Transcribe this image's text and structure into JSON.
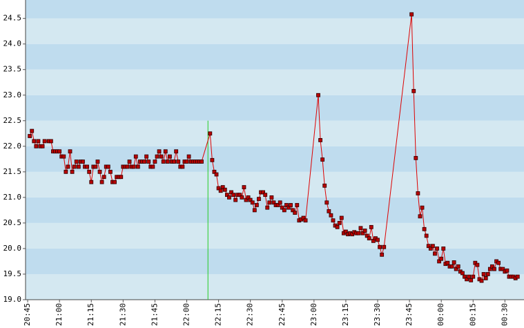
{
  "chart_data": {
    "type": "line",
    "color": "#dd0000",
    "marker_fill": "#b80000",
    "background": [
      "#d4e8f1",
      "#bfdcee"
    ],
    "xlim": [
      "20:44",
      "00:39"
    ],
    "xticks": [
      "20:45",
      "21:00",
      "21:15",
      "21:30",
      "21:45",
      "22:00",
      "22:15",
      "22:30",
      "22:45",
      "23:00",
      "23:15",
      "23:30",
      "23:45",
      "00:00",
      "00:15",
      "00:30"
    ],
    "ylim": [
      19,
      24.86
    ],
    "yticks": [
      {
        "value": 19,
        "label": "19.0"
      },
      19.5,
      {
        "value": 20,
        "label": "20.0"
      },
      20.5,
      {
        "value": 21,
        "label": "21.0"
      },
      21.5,
      {
        "value": 22,
        "label": "22.0"
      },
      22.5,
      {
        "value": 23,
        "label": "23.0"
      },
      23.5,
      {
        "value": 24,
        "label": "24.0"
      },
      24.5
    ],
    "vline": {
      "x": "22:10",
      "y": 22.5,
      "color": "#22cc22"
    },
    "x": [
      "20:46",
      "20:47",
      "20:48",
      "20:49",
      "20:50",
      "20:51",
      "20:52",
      "20:53",
      "20:55",
      "20:56",
      "20:57",
      "20:58",
      "20:59",
      "21:00",
      "21:01",
      "21:02",
      "21:03",
      "21:04",
      "21:05",
      "21:06",
      "21:07",
      "21:08",
      "21:09",
      "21:10",
      "21:11",
      "21:12",
      "21:13",
      "21:14",
      "21:15",
      "21:16",
      "21:17",
      "21:18",
      "21:19",
      "21:20",
      "21:21",
      "21:22",
      "21:23",
      "21:24",
      "21:25",
      "21:26",
      "21:27",
      "21:28",
      "21:29",
      "21:30",
      "21:31",
      "21:32",
      "21:33",
      "21:34",
      "21:35",
      "21:36",
      "21:37",
      "21:38",
      "21:39",
      "21:40",
      "21:41",
      "21:42",
      "21:43",
      "21:44",
      "21:45",
      "21:46",
      "21:47",
      "21:48",
      "21:49",
      "21:50",
      "21:51",
      "21:52",
      "21:53",
      "21:54",
      "21:55",
      "21:56",
      "21:57",
      "21:58",
      "21:59",
      "22:00",
      "22:01",
      "22:02",
      "22:03",
      "22:04",
      "22:05",
      "22:06",
      "22:07",
      "22:11",
      "22:12",
      "22:13",
      "22:14",
      "22:15",
      "22:16",
      "22:17",
      "22:18",
      "22:19",
      "22:20",
      "22:21",
      "22:22",
      "22:23",
      "22:24",
      "22:25",
      "22:26",
      "22:27",
      "22:28",
      "22:29",
      "22:30",
      "22:31",
      "22:32",
      "22:33",
      "22:34",
      "22:35",
      "22:36",
      "22:37",
      "22:38",
      "22:39",
      "22:40",
      "22:41",
      "22:42",
      "22:43",
      "22:44",
      "22:45",
      "22:46",
      "22:47",
      "22:48",
      "22:49",
      "22:50",
      "22:51",
      "22:52",
      "22:53",
      "22:54",
      "22:55",
      "22:56",
      "23:02",
      "23:03",
      "23:04",
      "23:05",
      "23:06",
      "23:07",
      "23:08",
      "23:09",
      "23:10",
      "23:11",
      "23:12",
      "23:13",
      "23:14",
      "23:15",
      "23:16",
      "23:17",
      "23:18",
      "23:19",
      "23:20",
      "23:21",
      "23:22",
      "23:23",
      "23:24",
      "23:25",
      "23:26",
      "23:27",
      "23:28",
      "23:29",
      "23:30",
      "23:31",
      "23:32",
      "23:33",
      "23:46",
      "23:47",
      "23:48",
      "23:49",
      "23:50",
      "23:51",
      "23:52",
      "23:53",
      "23:54",
      "23:55",
      "23:56",
      "23:57",
      "23:58",
      "23:59",
      "00:00",
      "00:01",
      "00:02",
      "00:03",
      "00:04",
      "00:05",
      "00:06",
      "00:07",
      "00:08",
      "00:09",
      "00:10",
      "00:11",
      "00:12",
      "00:13",
      "00:14",
      "00:15",
      "00:16",
      "00:17",
      "00:18",
      "00:19",
      "00:20",
      "00:21",
      "00:22",
      "00:23",
      "00:24",
      "00:25",
      "00:26",
      "00:27",
      "00:28",
      "00:29",
      "00:30",
      "00:31",
      "00:32",
      "00:33",
      "00:34",
      "00:35",
      "00:36"
    ],
    "values": [
      22.2,
      22.3,
      22.1,
      22.0,
      22.1,
      22.0,
      22.0,
      22.1,
      22.1,
      22.1,
      21.9,
      21.9,
      21.9,
      21.9,
      21.8,
      21.8,
      21.5,
      21.6,
      21.9,
      21.5,
      21.6,
      21.7,
      21.6,
      21.7,
      21.7,
      21.6,
      21.6,
      21.5,
      21.3,
      21.6,
      21.6,
      21.7,
      21.5,
      21.3,
      21.4,
      21.6,
      21.6,
      21.5,
      21.3,
      21.3,
      21.4,
      21.4,
      21.4,
      21.6,
      21.6,
      21.6,
      21.7,
      21.6,
      21.6,
      21.8,
      21.6,
      21.7,
      21.7,
      21.7,
      21.8,
      21.7,
      21.6,
      21.6,
      21.7,
      21.8,
      21.9,
      21.8,
      21.7,
      21.9,
      21.7,
      21.8,
      21.7,
      21.7,
      21.9,
      21.7,
      21.6,
      21.6,
      21.7,
      21.7,
      21.8,
      21.7,
      21.7,
      21.7,
      21.7,
      21.7,
      21.7,
      22.25,
      21.73,
      21.5,
      21.45,
      21.18,
      21.13,
      21.2,
      21.15,
      21.05,
      21.0,
      21.1,
      21.05,
      20.95,
      21.05,
      21.05,
      21.0,
      21.2,
      20.95,
      21.0,
      20.95,
      20.9,
      20.75,
      20.85,
      20.97,
      21.1,
      21.1,
      21.05,
      20.8,
      20.9,
      21.0,
      20.9,
      20.85,
      20.85,
      20.9,
      20.8,
      20.75,
      20.85,
      20.8,
      20.85,
      20.75,
      20.7,
      20.85,
      20.55,
      20.57,
      20.6,
      20.55,
      23.0,
      22.12,
      21.74,
      21.23,
      20.9,
      20.73,
      20.65,
      20.55,
      20.45,
      20.42,
      20.5,
      20.6,
      20.3,
      20.33,
      20.28,
      20.3,
      20.28,
      20.32,
      20.3,
      20.3,
      20.4,
      20.3,
      20.35,
      20.25,
      20.2,
      20.42,
      20.15,
      20.2,
      20.17,
      20.03,
      19.88,
      20.03,
      24.58,
      23.08,
      21.77,
      21.08,
      20.63,
      20.8,
      20.38,
      20.25,
      20.05,
      20.0,
      20.05,
      19.9,
      20.0,
      19.75,
      19.8,
      20.0,
      19.7,
      19.72,
      19.65,
      19.65,
      19.73,
      19.6,
      19.65,
      19.55,
      19.52,
      19.45,
      19.4,
      19.45,
      19.38,
      19.45,
      19.72,
      19.68,
      19.4,
      19.37,
      19.5,
      19.42,
      19.5,
      19.6,
      19.65,
      19.6,
      19.75,
      19.72,
      19.6,
      19.6,
      19.55,
      19.57,
      19.45,
      19.45,
      19.45,
      19.42,
      19.45
    ]
  }
}
